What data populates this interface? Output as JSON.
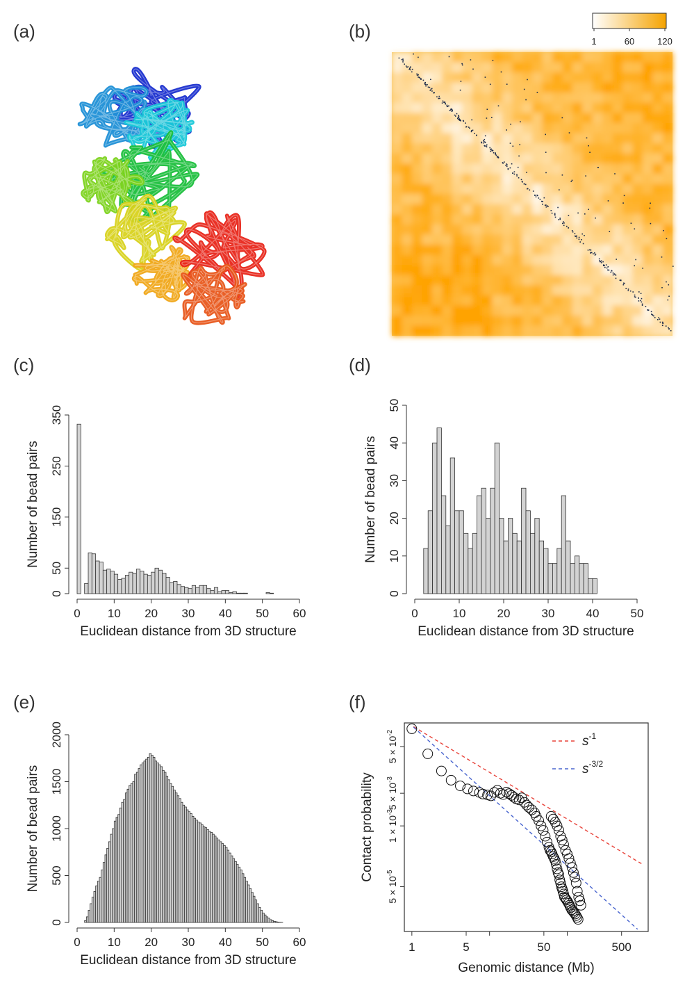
{
  "panels": {
    "a": "(a)",
    "b": "(b)",
    "c": "(c)",
    "d": "(d)",
    "e": "(e)",
    "f": "(f)"
  },
  "colorbar": {
    "ticks": [
      "1",
      "60",
      "120"
    ],
    "low_color": "#ffffff",
    "high_color": "#f5a300"
  },
  "chart_data": [
    {
      "panel": "(a)",
      "type": "other",
      "description": "3D chromosome structure rendered as a tube colored blue to red"
    },
    {
      "panel": "(b)",
      "type": "heatmap",
      "colorbar_ticks": [
        1,
        60,
        120
      ],
      "colors": [
        "#ffffff",
        "#f5a300"
      ]
    },
    {
      "panel": "(c)",
      "type": "bar",
      "xlabel": "Euclidean distance from 3D structure",
      "ylabel": "Number of bead pairs",
      "xlim": [
        0,
        60
      ],
      "ylim": [
        0,
        350
      ],
      "xticks": [
        0,
        10,
        20,
        30,
        40,
        50,
        60
      ],
      "yticks": [
        0,
        50,
        150,
        250,
        350
      ],
      "bin_width": 1,
      "values": [
        332,
        0,
        20,
        80,
        78,
        64,
        62,
        46,
        48,
        44,
        38,
        28,
        30,
        36,
        42,
        40,
        48,
        44,
        38,
        36,
        42,
        50,
        46,
        40,
        32,
        22,
        24,
        18,
        14,
        12,
        10,
        16,
        12,
        16,
        16,
        10,
        6,
        12,
        4,
        6,
        6,
        2,
        4,
        1,
        1,
        1,
        0,
        0,
        0,
        0,
        0,
        2,
        1,
        0,
        0,
        0,
        0,
        0,
        0,
        0
      ]
    },
    {
      "panel": "(d)",
      "type": "bar",
      "xlabel": "Euclidean distance from 3D structure",
      "ylabel": "Number of bead pairs",
      "xlim": [
        0,
        50
      ],
      "ylim": [
        0,
        50
      ],
      "xticks": [
        0,
        10,
        20,
        30,
        40,
        50
      ],
      "yticks": [
        0,
        10,
        20,
        30,
        40,
        50
      ],
      "bin_width": 1,
      "values": [
        0,
        0,
        12,
        22,
        40,
        44,
        26,
        18,
        36,
        22,
        22,
        16,
        12,
        16,
        26,
        28,
        20,
        28,
        40,
        20,
        14,
        20,
        16,
        14,
        28,
        22,
        16,
        20,
        14,
        12,
        8,
        8,
        12,
        26,
        14,
        8,
        10,
        8,
        8,
        4,
        4,
        0,
        0,
        0,
        0,
        0,
        0,
        0,
        0,
        0
      ]
    },
    {
      "panel": "(e)",
      "type": "bar",
      "xlabel": "Euclidean distance from 3D structure",
      "ylabel": "Number of bead pairs",
      "xlim": [
        0,
        60
      ],
      "ylim": [
        0,
        2000
      ],
      "xticks": [
        0,
        10,
        20,
        30,
        40,
        50,
        60
      ],
      "yticks": [
        0,
        500,
        1000,
        1500,
        2000
      ],
      "bin_width": 0.5,
      "values": [
        0,
        0,
        0,
        0,
        20,
        60,
        130,
        200,
        270,
        330,
        390,
        440,
        480,
        560,
        640,
        720,
        790,
        860,
        940,
        1000,
        1080,
        1120,
        1150,
        1220,
        1280,
        1310,
        1380,
        1420,
        1460,
        1480,
        1500,
        1580,
        1600,
        1640,
        1680,
        1700,
        1720,
        1740,
        1760,
        1800,
        1780,
        1760,
        1720,
        1700,
        1680,
        1660,
        1620,
        1600,
        1560,
        1520,
        1480,
        1450,
        1410,
        1380,
        1350,
        1320,
        1280,
        1250,
        1230,
        1200,
        1180,
        1160,
        1130,
        1110,
        1090,
        1070,
        1060,
        1040,
        1020,
        1010,
        990,
        970,
        960,
        940,
        920,
        900,
        880,
        860,
        840,
        820,
        800,
        770,
        740,
        710,
        680,
        650,
        620,
        590,
        560,
        520,
        480,
        440,
        400,
        360,
        320,
        280,
        240,
        200,
        160,
        130,
        100,
        80,
        60,
        45,
        30,
        20,
        12,
        8,
        4,
        2,
        1,
        0,
        0,
        0,
        0,
        0,
        0,
        0,
        0,
        0
      ]
    },
    {
      "panel": "(f)",
      "type": "scatter",
      "xlabel": "Genomic distance (Mb)",
      "ylabel": "Contact probability",
      "x_scale": "log",
      "y_scale": "log",
      "xlim": [
        1,
        1000
      ],
      "ylim": [
        1e-05,
        0.2
      ],
      "xticks": [
        "1",
        "5",
        "50",
        "500"
      ],
      "yticks": [
        "5 × 10^-5",
        "1 × 10^-3",
        "5 × 10^-3",
        "5 × 10^-2"
      ],
      "legend": "top-right",
      "series": [
        {
          "name": "s^-1",
          "style": "dashed",
          "color": "#e8433a"
        },
        {
          "name": "s^-3/2",
          "style": "dashed",
          "color": "#4a66cf"
        }
      ],
      "x": [
        1,
        1.6,
        2.4,
        3.2,
        4.2,
        5.2,
        6.2,
        7.4,
        8.2,
        9.4,
        10.4,
        11.5,
        12.6,
        13.8,
        15,
        16.5,
        17.8,
        19.2,
        20.6,
        22,
        24,
        26,
        28,
        30,
        32,
        35,
        38,
        40,
        43,
        46,
        49,
        52,
        55,
        58,
        60,
        62,
        64,
        66,
        68,
        70,
        72,
        74,
        76,
        78,
        80,
        82,
        84,
        86,
        88,
        90,
        92,
        95,
        98,
        101,
        104,
        107,
        110,
        114,
        118,
        122,
        126,
        130,
        134,
        138,
        62,
        66,
        70,
        74,
        78,
        82,
        86,
        90,
        95,
        100,
        105,
        110,
        115,
        120,
        125,
        130,
        135,
        140,
        145,
        150
      ],
      "y": [
        0.12,
        0.035,
        0.015,
        0.0095,
        0.0072,
        0.0062,
        0.0056,
        0.0052,
        0.0048,
        0.0046,
        0.0044,
        0.0052,
        0.0058,
        0.005,
        0.0047,
        0.0053,
        0.0049,
        0.0045,
        0.0041,
        0.0038,
        0.0036,
        0.004,
        0.0032,
        0.0028,
        0.0025,
        0.0022,
        0.0019,
        0.0016,
        0.0013,
        0.001,
        0.0008,
        0.0006,
        0.00045,
        0.00035,
        0.0003,
        0.00028,
        0.00025,
        0.00022,
        0.0002,
        0.00018,
        0.00015,
        0.00012,
        0.0001,
        9e-05,
        7e-05,
        6e-05,
        5e-05,
        4.5e-05,
        4e-05,
        3.5e-05,
        3e-05,
        2.8e-05,
        2.6e-05,
        2.4e-05,
        2.2e-05,
        2e-05,
        1.8e-05,
        1.6e-05,
        1.5e-05,
        1.4e-05,
        1.3e-05,
        1.2e-05,
        1.1e-05,
        1e-05,
        0.0016,
        0.0014,
        0.0012,
        0.001,
        0.0008,
        0.0006,
        0.0005,
        0.0004,
        0.0003,
        0.00025,
        0.0002,
        0.00016,
        0.00013,
        0.0001,
        8e-05,
        6e-05,
        4e-05,
        3e-05,
        2.5e-05,
        2e-05
      ]
    }
  ]
}
